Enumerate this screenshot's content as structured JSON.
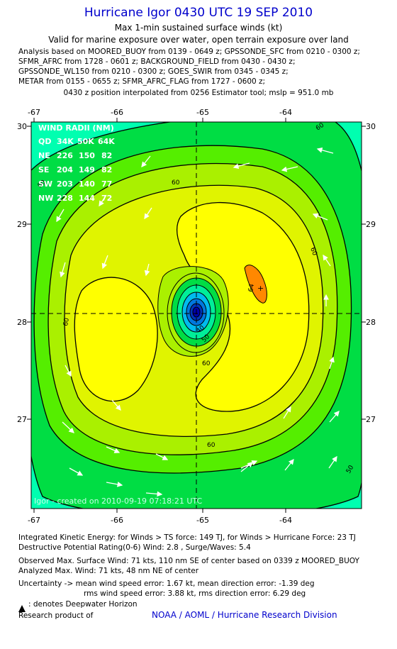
{
  "header": {
    "title": "Hurricane Igor 0430 UTC 19 SEP 2010",
    "subtitle1": "Max 1-min sustained surface winds (kt)",
    "subtitle2": "Valid for marine exposure over water, open terrain exposure over land"
  },
  "analysis": {
    "lines": [
      "Analysis based on MOORED_BUOY from 0139 - 0649 z; GPSSONDE_SFC from 0210 - 0300 z;",
      "SFMR_AFRC from 1728 - 0601 z; BACKGROUND_FIELD from 0430 - 0430 z;",
      "GPSSONDE_WL150 from 0210 - 0300 z; GOES_SWIR from 0345 - 0345 z;",
      "METAR from 0155 - 0655 z; SFMR_AFRC_FLAG from 1727 - 0600 z;"
    ],
    "position_note": "0430 z position interpolated from 0256 Estimator tool; mslp = 951.0 mb"
  },
  "map": {
    "lon_ticks": [
      "-67",
      "-66",
      "-65",
      "-64"
    ],
    "lat_ticks": [
      "30",
      "29",
      "28",
      "27"
    ],
    "contour_labels": [
      "60",
      "60",
      "60",
      "60",
      "60",
      "60",
      "60",
      "50",
      "50",
      "40",
      "64"
    ],
    "credit": "Igor - created on 2010-09-19 07:18:21 UTC",
    "colors": {
      "level_lt34": "#00ffb0",
      "level_34": "#00dd44",
      "level_45": "#55ee00",
      "level_50": "#aaf000",
      "level_55": "#e0f400",
      "level_60": "#ffff00",
      "level_64": "#ff8800",
      "eye_inner": "#0000aa",
      "eye_mid": "#00bbee"
    },
    "wind_radii": {
      "title": "WIND RADII (NM)",
      "header": [
        "QD",
        "34K",
        "50K",
        "64K"
      ],
      "rows": [
        [
          "NE",
          "226",
          "150",
          "82"
        ],
        [
          "SE",
          "204",
          "149",
          "82"
        ],
        [
          "SW",
          "203",
          "140",
          "77"
        ],
        [
          "NW",
          "228",
          "144",
          "72"
        ]
      ]
    }
  },
  "footer": {
    "ike": "Integrated Kinetic Energy:  for Winds > TS force: 149 TJ,  for Winds > Hurricane Force: 23 TJ",
    "dpr": "Destructive Potential Rating(0-6)   Wind: 2.8 , Surge/Waves: 5.4",
    "observed": "Observed Max. Surface Wind: 71 kts, 110 nm SE of center based on 0339 z MOORED_BUOY",
    "analyzed": "Analyzed Max. Wind: 71 kts, 48 nm NE of center",
    "uncertainty1": "Uncertainty -> mean wind speed error: 1.67 kt,   mean direction error:  -1.39 deg",
    "uncertainty2": "rms wind speed error: 3.88 kt,   rms direction error: 6.29 deg",
    "deepwater": ": denotes Deepwater Horizon",
    "research": "Research product of",
    "org": "NOAA / AOML / Hurricane Research Division"
  }
}
